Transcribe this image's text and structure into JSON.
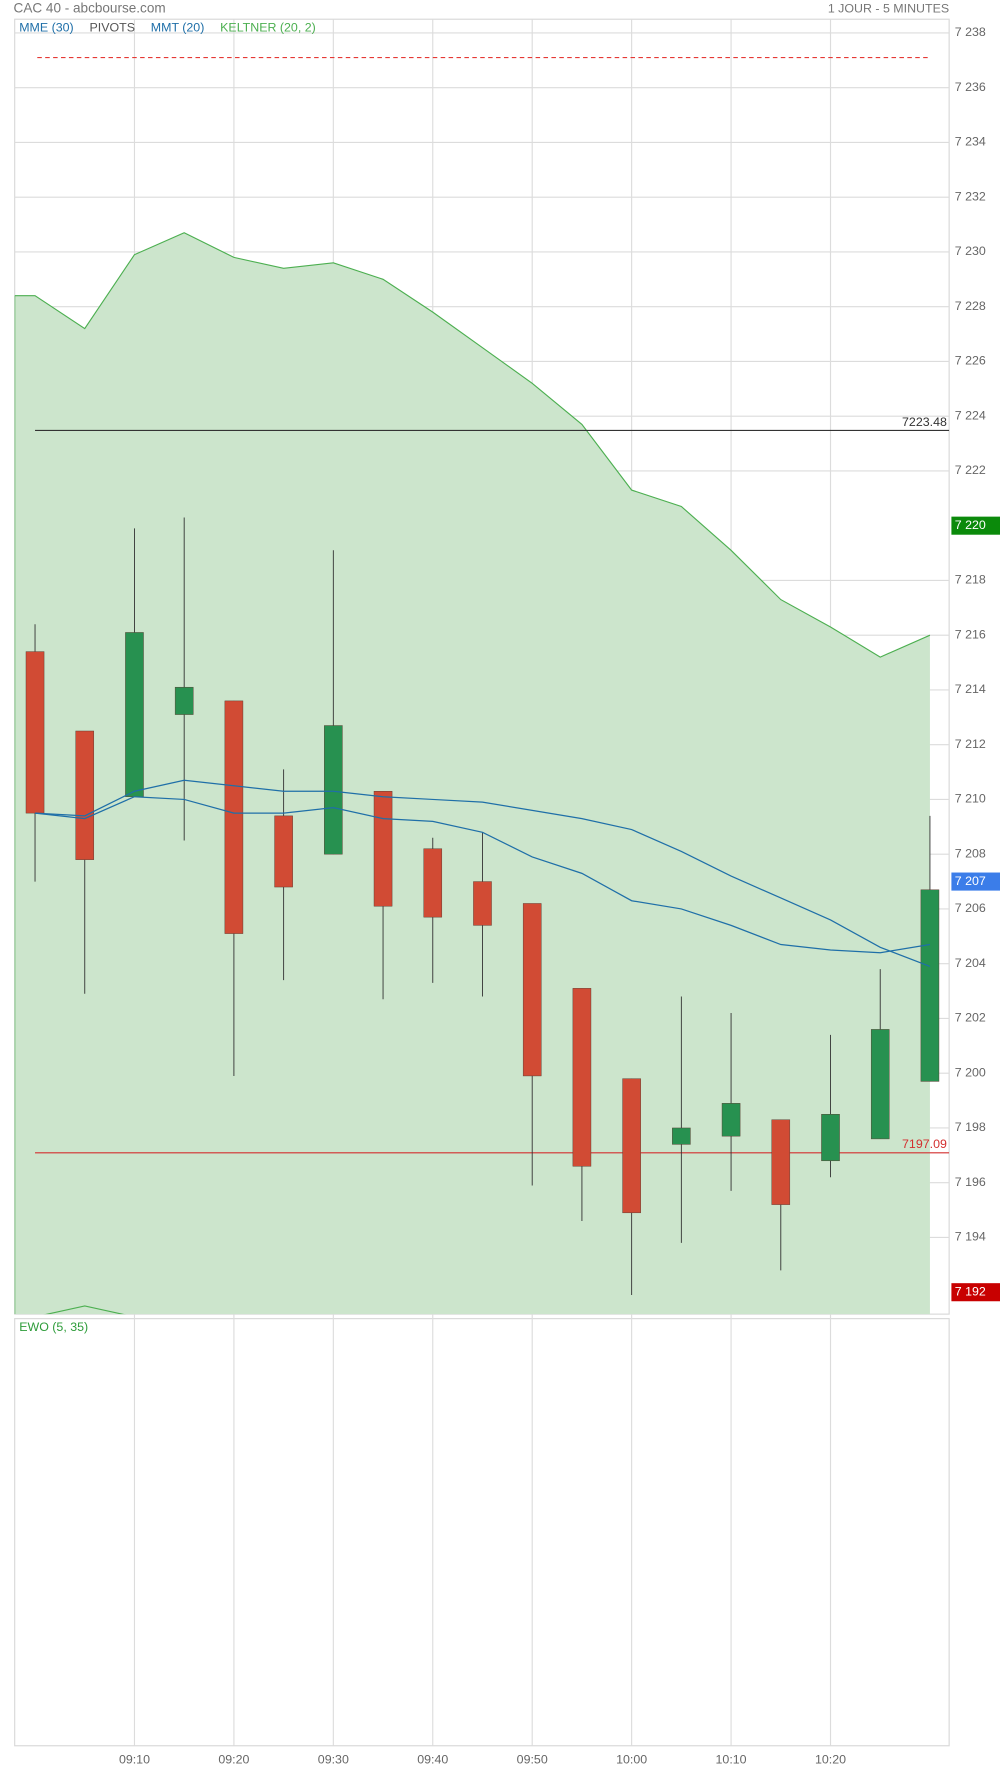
{
  "chart_data": {
    "type": "candlestick",
    "title": "CAC 40 - abcbourse.com",
    "subtitle": "1 JOUR - 5 MINUTES",
    "categories": [
      null,
      null,
      "09:10",
      null,
      "09:20",
      null,
      "09:30",
      null,
      "09:40",
      null,
      "09:50",
      null,
      "10:00",
      null,
      "10:10",
      null,
      "10:20",
      null,
      null
    ],
    "open": [
      7215.4,
      7212.5,
      7210.1,
      7213.1,
      7213.6,
      7209.4,
      7208.0,
      7210.3,
      7208.2,
      7207.0,
      7206.2,
      7203.1,
      7199.8,
      7197.4,
      7197.7,
      7198.3,
      7196.8,
      7197.6,
      7199.7
    ],
    "high": [
      7216.4,
      7212.5,
      7219.9,
      7220.3,
      7213.6,
      7211.1,
      7219.1,
      7210.3,
      7208.6,
      7208.8,
      7206.2,
      7203.1,
      7199.8,
      7202.8,
      7202.2,
      7198.3,
      7201.4,
      7203.8,
      7209.4
    ],
    "low": [
      7207.0,
      7202.9,
      7210.1,
      7208.5,
      7199.9,
      7203.4,
      7208.0,
      7202.7,
      7203.3,
      7202.8,
      7195.9,
      7194.6,
      7191.9,
      7193.8,
      7195.7,
      7192.8,
      7196.2,
      7197.6,
      7199.7
    ],
    "close": [
      7209.5,
      7207.8,
      7216.1,
      7214.1,
      7205.1,
      7206.8,
      7212.7,
      7206.1,
      7205.7,
      7205.4,
      7199.9,
      7196.6,
      7194.9,
      7198.0,
      7198.9,
      7195.2,
      7198.5,
      7201.6,
      7206.7
    ],
    "up_color": "#279150",
    "down_color": "#d14b34",
    "ylim": [
      7191.2,
      7238.5
    ],
    "yticks": [
      {
        "value": 7238,
        "label": "7 238"
      },
      {
        "value": 7236,
        "label": "7 236"
      },
      {
        "value": 7234,
        "label": "7 234"
      },
      {
        "value": 7232,
        "label": "7 232"
      },
      {
        "value": 7230,
        "label": "7 230"
      },
      {
        "value": 7228,
        "label": "7 228"
      },
      {
        "value": 7226,
        "label": "7 226"
      },
      {
        "value": 7224,
        "label": "7 224"
      },
      {
        "value": 7222,
        "label": "7 222"
      },
      {
        "value": 7218,
        "label": "7 218"
      },
      {
        "value": 7216,
        "label": "7 216"
      },
      {
        "value": 7214,
        "label": "7 214"
      },
      {
        "value": 7212,
        "label": "7 212"
      },
      {
        "value": 7210,
        "label": "7 210"
      },
      {
        "value": 7208,
        "label": "7 208"
      },
      {
        "value": 7206,
        "label": "7 206"
      },
      {
        "value": 7204,
        "label": "7 204"
      },
      {
        "value": 7202,
        "label": "7 202"
      },
      {
        "value": 7200,
        "label": "7 200"
      },
      {
        "value": 7198,
        "label": "7 198"
      },
      {
        "value": 7196,
        "label": "7 196"
      },
      {
        "value": 7194,
        "label": "7 194"
      }
    ],
    "grid": true,
    "indicators": [
      {
        "name": "MME (30)",
        "kind": "line",
        "color": "#1f6fa8",
        "values": [
          7209.5,
          7209.3,
          7210.1,
          7210.0,
          7209.5,
          7209.5,
          7209.7,
          7209.3,
          7209.2,
          7208.8,
          7207.9,
          7207.3,
          7206.3,
          7206.0,
          7205.4,
          7204.7,
          7204.5,
          7204.4,
          7204.7
        ]
      },
      {
        "name": "PIVOTS",
        "kind": "levels",
        "color": "#555555",
        "levels": [
          {
            "value": 7237.1,
            "color": "#e53935"
          }
        ]
      },
      {
        "name": "MMT (20)",
        "kind": "line",
        "color": "#1f6fa8",
        "values": [
          7209.5,
          7209.4,
          7210.3,
          7210.7,
          7210.5,
          7210.3,
          7210.3,
          7210.1,
          7210.0,
          7209.9,
          7209.6,
          7209.3,
          7208.9,
          7208.1,
          7207.2,
          7206.4,
          7205.6,
          7204.6,
          7203.9
        ]
      },
      {
        "name": "KELTNER (20, 2)",
        "kind": "band",
        "color": "#4caf50",
        "fill": "#cce5cc",
        "upper": [
          7228.4,
          7227.2,
          7229.9,
          7230.7,
          7229.8,
          7229.4,
          7229.6,
          7229.0,
          7227.8,
          7226.5,
          7225.2,
          7223.7,
          7221.3,
          7220.7,
          7219.1,
          7217.3,
          7216.3,
          7215.2,
          7216.0
        ],
        "lower": [
          7191.1,
          7191.5,
          7191.1,
          null,
          null,
          null,
          null,
          null,
          null,
          null,
          null,
          null,
          null,
          null,
          null,
          null,
          null,
          null,
          null
        ]
      }
    ],
    "price_lines": [
      {
        "value": 7223.48,
        "color": "#333333"
      },
      {
        "value": 7197.09,
        "color": "#d32f2f"
      }
    ],
    "markers": [
      {
        "value": 7220,
        "label": "7 220",
        "color": "#0b8a0b"
      },
      {
        "value": 7207,
        "label": "7 207",
        "color": "#3b7de9"
      },
      {
        "value": 7192,
        "label": "7 192",
        "color": "#c80000"
      }
    ],
    "panel2": {
      "title": "EWO (5, 35)",
      "color": "#2e9c3a"
    }
  }
}
